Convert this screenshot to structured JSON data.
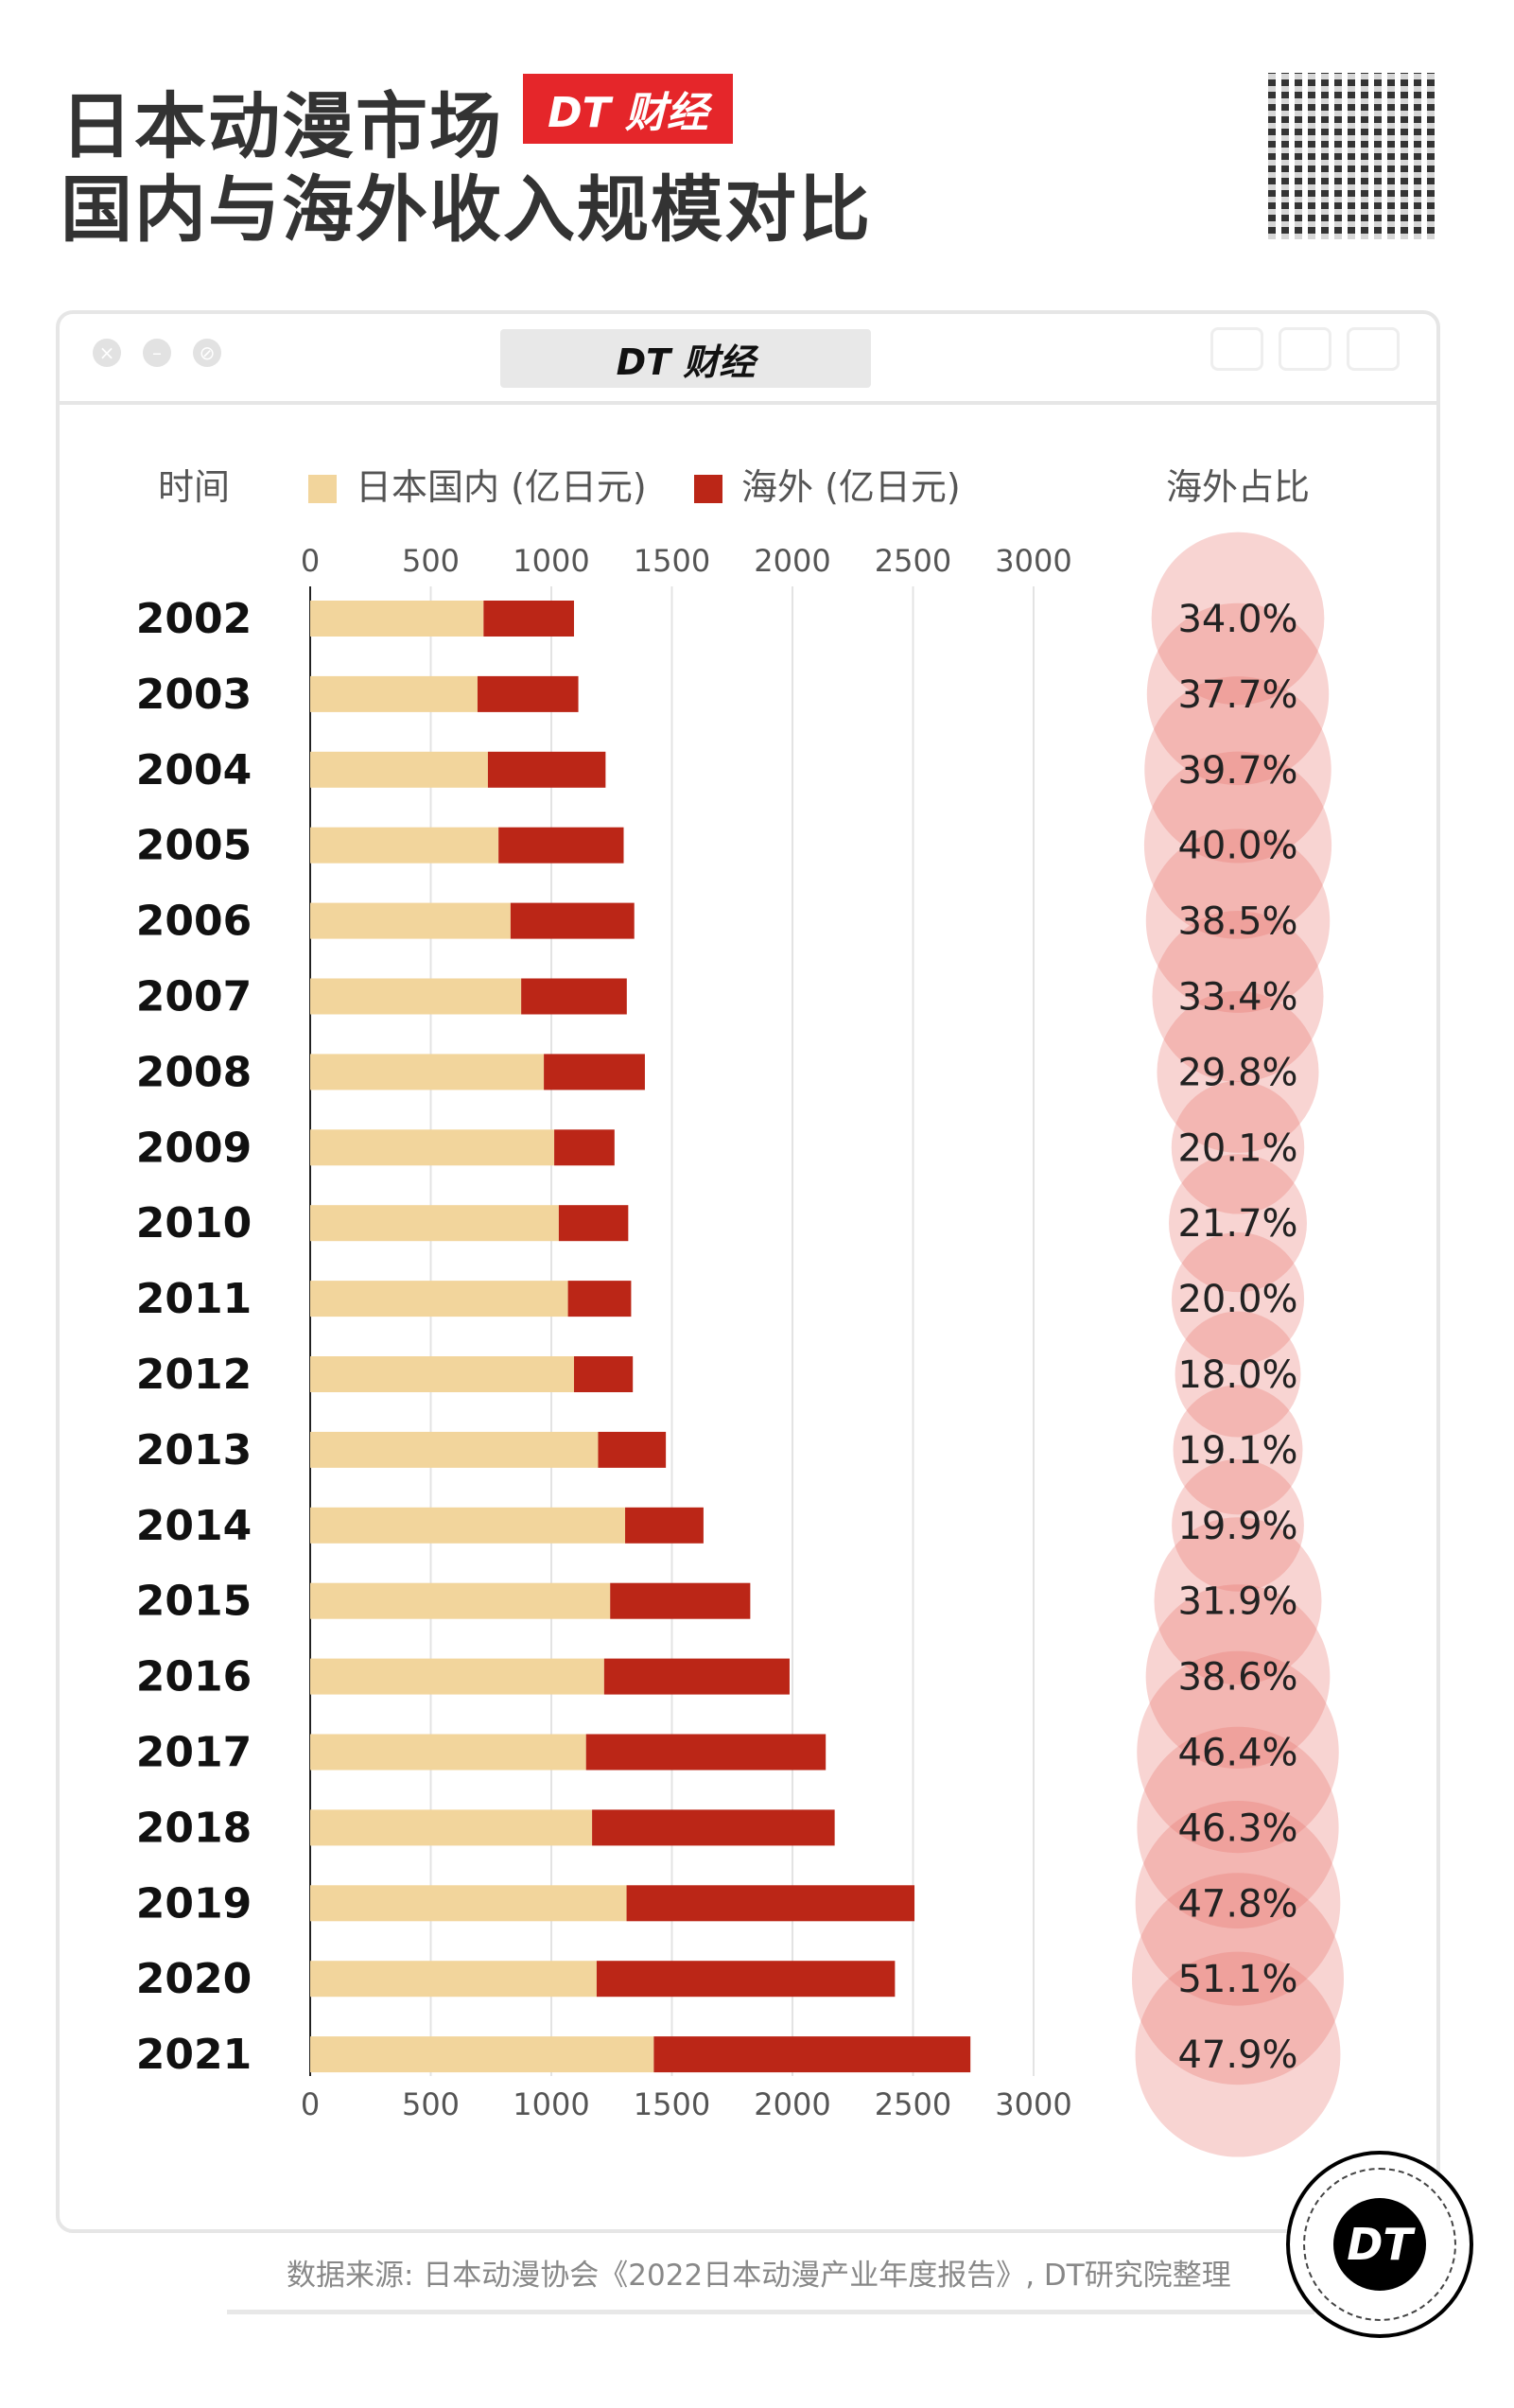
{
  "header": {
    "title_line1": "日本动漫市场",
    "title_line2": "国内与海外收入规模对比",
    "badge": "DT 财经"
  },
  "window": {
    "title": "DT 财经"
  },
  "footer": {
    "source": "数据来源: 日本动漫协会《2022日本动漫产业年度报告》, DT研究院整理",
    "logo": "DT"
  },
  "colors": {
    "domestic": "#f2d59c",
    "overseas": "#bb2617",
    "share_circle": "#e8706a"
  },
  "chart_data": {
    "type": "bar",
    "stacked": true,
    "orientation": "horizontal",
    "column_labels": {
      "year": "时间",
      "share": "海外占比"
    },
    "categories": [
      "2002",
      "2003",
      "2004",
      "2005",
      "2006",
      "2007",
      "2008",
      "2009",
      "2010",
      "2011",
      "2012",
      "2013",
      "2014",
      "2015",
      "2016",
      "2017",
      "2018",
      "2019",
      "2020",
      "2021"
    ],
    "series": [
      {
        "name": "日本国内 (亿日元)",
        "values": [
          719,
          694,
          737,
          781,
          831,
          875,
          969,
          1012,
          1031,
          1069,
          1094,
          1194,
          1306,
          1244,
          1219,
          1144,
          1169,
          1312,
          1188,
          1425
        ]
      },
      {
        "name": "海外 (亿日元)",
        "values": [
          375,
          418,
          488,
          519,
          513,
          438,
          419,
          250,
          288,
          262,
          244,
          281,
          325,
          581,
          769,
          994,
          1006,
          1194,
          1237,
          1313
        ]
      }
    ],
    "overseas_share": [
      "34.0%",
      "37.7%",
      "39.7%",
      "40.0%",
      "38.5%",
      "33.4%",
      "29.8%",
      "20.1%",
      "21.7%",
      "20.0%",
      "18.0%",
      "19.1%",
      "19.9%",
      "31.9%",
      "38.6%",
      "46.4%",
      "46.3%",
      "47.8%",
      "51.1%",
      "47.9%"
    ],
    "overseas_share_values": [
      34.0,
      37.7,
      39.7,
      40.0,
      38.5,
      33.4,
      29.8,
      20.1,
      21.7,
      20.0,
      18.0,
      19.1,
      19.9,
      31.9,
      38.6,
      46.4,
      46.3,
      47.8,
      51.1,
      47.9
    ],
    "xticks": [
      "0",
      "500",
      "1000",
      "1500",
      "2000",
      "2500",
      "3000"
    ],
    "xlim": [
      0,
      3000
    ],
    "grid": true,
    "legend": "top"
  }
}
